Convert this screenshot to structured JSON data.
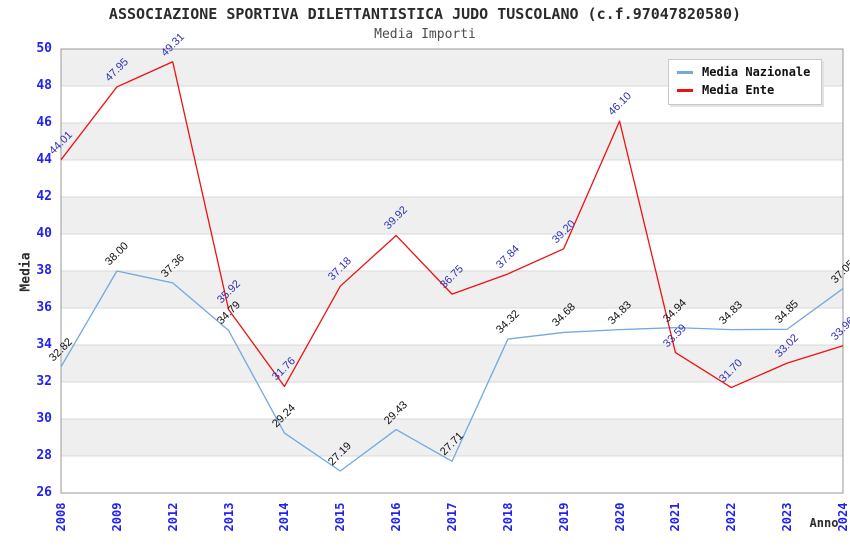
{
  "chart_data": {
    "type": "line",
    "title": "ASSOCIAZIONE SPORTIVA DILETTANTISTICA JUDO TUSCOLANO (c.f.97047820580)",
    "subtitle": "Media Importi",
    "xlabel": "Anno",
    "ylabel": "Media",
    "categories": [
      "2008",
      "2009",
      "2012",
      "2013",
      "2014",
      "2015",
      "2016",
      "2017",
      "2018",
      "2019",
      "2020",
      "2021",
      "2022",
      "2023",
      "2024"
    ],
    "ylim": [
      26,
      50
    ],
    "ytick_step": 2,
    "grid": "horizontal-bands-alternating",
    "legend_position": "top-right",
    "colors": {
      "tick_label": "#2222ee",
      "band_gray": "#efefef",
      "gridline": "#d9d9d9",
      "plot_border": "#999999"
    },
    "series": [
      {
        "name": "Media Nazionale",
        "color": "#72a9e0",
        "label_color": "#111111",
        "values": [
          32.82,
          38.0,
          37.36,
          34.79,
          29.24,
          27.19,
          29.43,
          27.71,
          34.32,
          34.68,
          34.83,
          34.94,
          34.83,
          34.85,
          37.05
        ]
      },
      {
        "name": "Media Ente",
        "color": "#ee1111",
        "label_color": "#3030bb",
        "values": [
          44.01,
          47.95,
          49.31,
          35.92,
          31.76,
          37.18,
          39.92,
          36.75,
          37.84,
          39.2,
          46.1,
          33.59,
          31.7,
          33.02,
          33.96
        ]
      }
    ]
  }
}
